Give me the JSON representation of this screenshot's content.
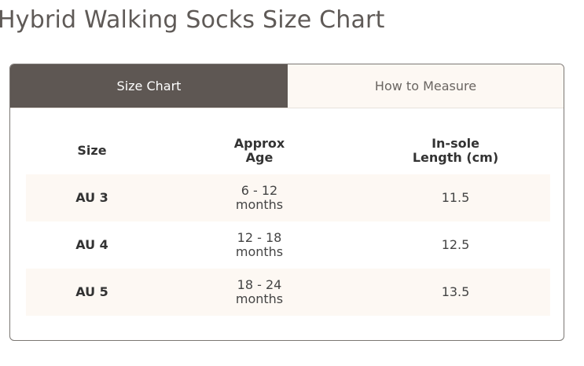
{
  "header": {
    "title": "Hybrid Walking Socks Size Chart"
  },
  "tabs": [
    "Size Chart",
    "How to Measure"
  ],
  "table": {
    "columns": [
      "Size",
      "Approx Age",
      "In-sole Length (cm)"
    ],
    "rows": [
      [
        "AU 3",
        "6 - 12 months",
        "11.5"
      ],
      [
        "AU 4",
        "12 - 18 months",
        "12.5"
      ],
      [
        "AU 5",
        "18 - 24 months",
        "13.5"
      ]
    ]
  }
}
